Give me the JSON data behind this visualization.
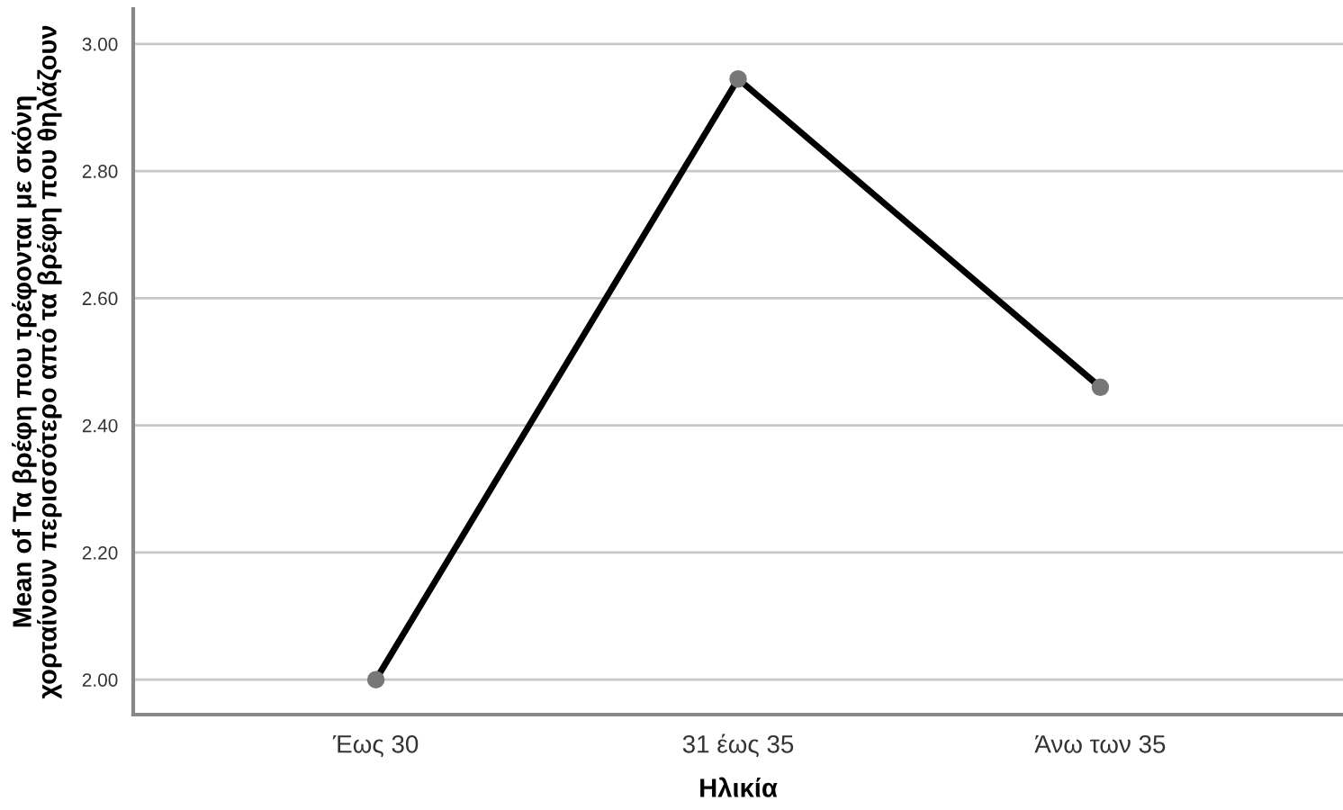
{
  "chart_data": {
    "type": "line",
    "xlabel": "Ηλικία",
    "ylabel": "Mean of Τα βρέφη που τρέφονται με σκόνη\nχορταίνουν περισσότερο από τα βρέφη που θηλάζουν",
    "categories": [
      "Έως 30",
      "31 έως 35",
      "Άνω των 35"
    ],
    "series": [
      {
        "color": "#000000",
        "values": [
          2.0,
          2.945,
          2.46
        ]
      }
    ],
    "marker": "circle",
    "line_style": "solid",
    "ylim": [
      1.945,
      3.055
    ],
    "yticks": [
      {
        "value": 2.0,
        "label": "2.00"
      },
      {
        "value": 2.2,
        "label": "2.20"
      },
      {
        "value": 2.4,
        "label": "2.40"
      },
      {
        "value": 2.6,
        "label": "2.60"
      },
      {
        "value": 2.8,
        "label": "2.80"
      },
      {
        "value": 3.0,
        "label": "3.00"
      }
    ],
    "grid": "y",
    "legend": false
  }
}
